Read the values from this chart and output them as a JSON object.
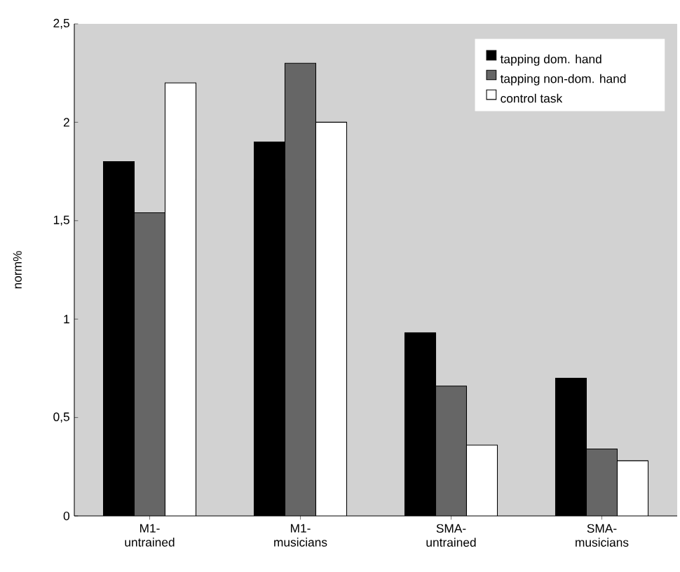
{
  "chart_data": {
    "type": "bar",
    "ylabel": "norm%",
    "categories": [
      "M1- untrained",
      "M1- musicians",
      "SMA- untrained",
      "SMA- musicians"
    ],
    "series": [
      {
        "name": "tapping dom. hand",
        "color": "#000000",
        "values": [
          1.8,
          1.9,
          0.93,
          0.7
        ]
      },
      {
        "name": "tapping non-dom. hand",
        "color": "#666666",
        "values": [
          1.54,
          2.3,
          0.66,
          0.34
        ]
      },
      {
        "name": "control task",
        "color": "#ffffff",
        "values": [
          2.2,
          2.0,
          0.36,
          0.28
        ]
      }
    ],
    "ylim": [
      0,
      2.5
    ],
    "yticks": [
      0,
      {
        "value": 0.5,
        "label": "0,5"
      },
      1,
      {
        "value": 1.5,
        "label": "1,5"
      },
      2,
      {
        "value": 2.5,
        "label": "2,5"
      }
    ],
    "legend": "top right",
    "grid": false
  }
}
